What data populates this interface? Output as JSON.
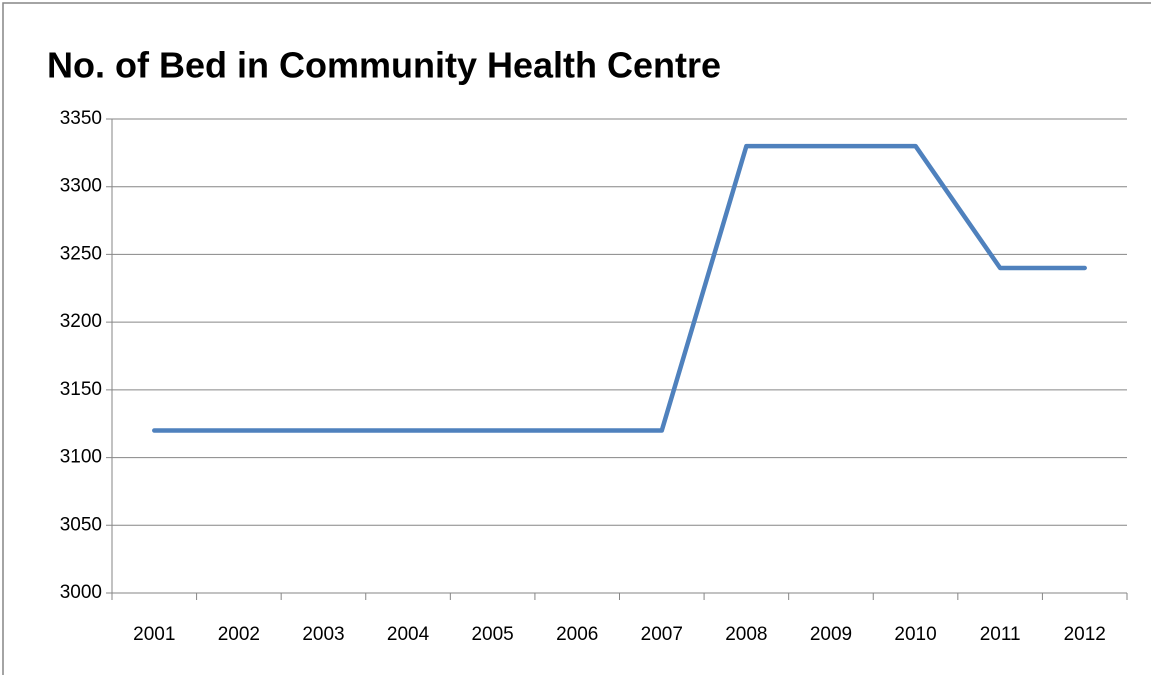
{
  "chart_data": {
    "type": "line",
    "title": "No. of Bed in Community Health Centre",
    "categories": [
      "2001",
      "2002",
      "2003",
      "2004",
      "2005",
      "2006",
      "2007",
      "2008",
      "2009",
      "2010",
      "2011",
      "2012"
    ],
    "series": [
      {
        "name": "No. of Bed",
        "color": "#4f81bd",
        "values": [
          3120,
          3120,
          3120,
          3120,
          3120,
          3120,
          3120,
          3330,
          3330,
          3330,
          3240,
          3240
        ]
      }
    ],
    "ylim": [
      3000,
      3350
    ],
    "yticks": [
      3000,
      3050,
      3100,
      3150,
      3200,
      3250,
      3300,
      3350
    ],
    "grid": true,
    "legend": false
  }
}
